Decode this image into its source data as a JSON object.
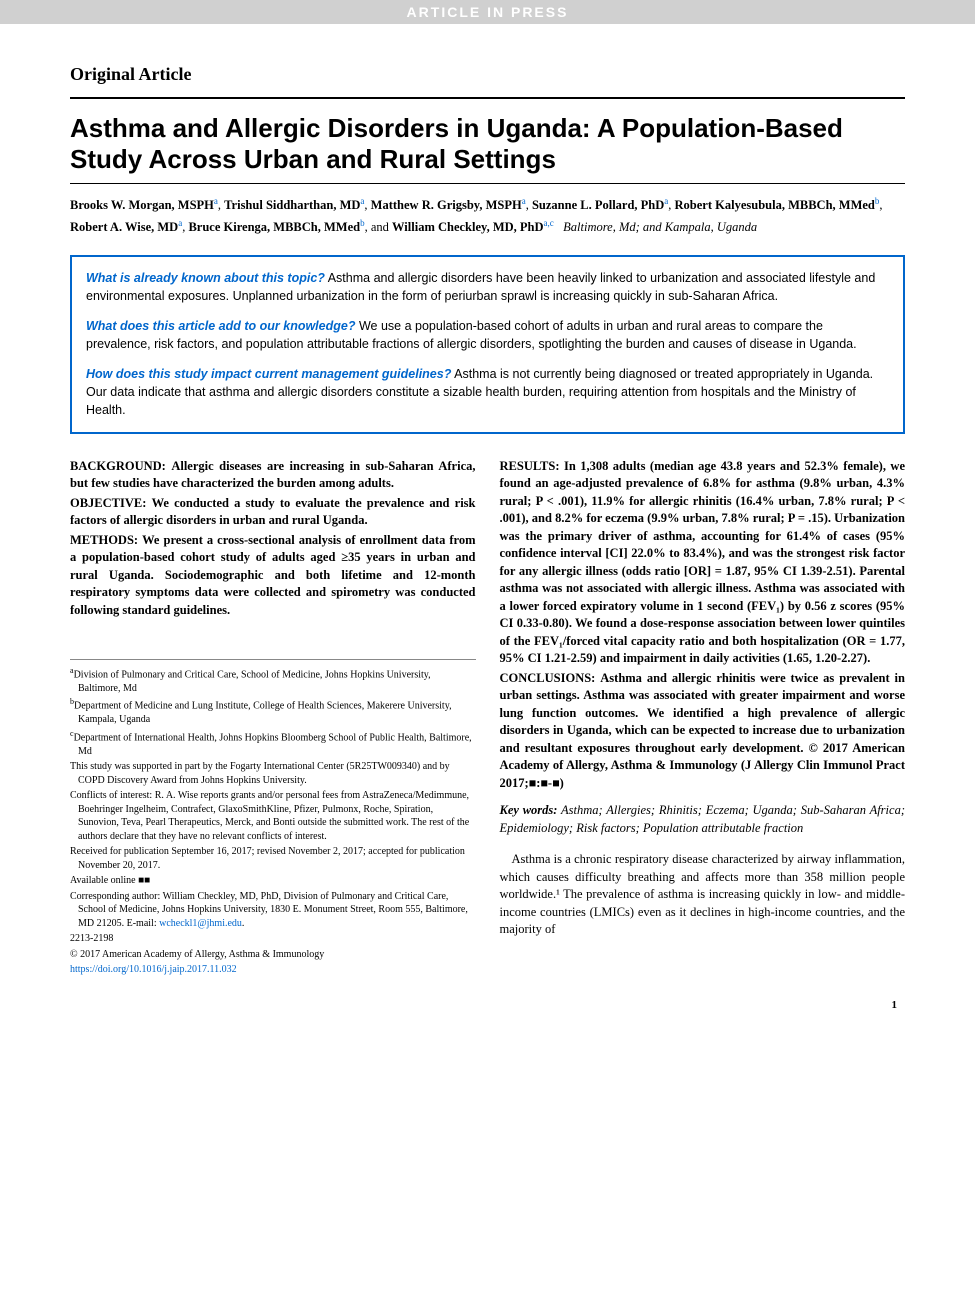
{
  "banner": "ARTICLE IN PRESS",
  "article_type": "Original Article",
  "title": "Asthma and Allergic Disorders in Uganda: A Population-Based Study Across Urban and Rural Settings",
  "authors": [
    {
      "name": "Brooks W. Morgan, MSPH",
      "aff": "a"
    },
    {
      "name": "Trishul Siddharthan, MD",
      "aff": "a"
    },
    {
      "name": "Matthew R. Grigsby, MSPH",
      "aff": "a"
    },
    {
      "name": "Suzanne L. Pollard, PhD",
      "aff": "a"
    },
    {
      "name": "Robert Kalyesubula, MBBCh, MMed",
      "aff": "b"
    },
    {
      "name": "Robert A. Wise, MD",
      "aff": "a"
    },
    {
      "name": "Bruce Kirenga, MBBCh, MMed",
      "aff": "b"
    },
    {
      "name": "William Checkley, MD, PhD",
      "aff": "a,c"
    }
  ],
  "author_locations": "Baltimore, Md; and Kampala, Uganda",
  "highlights": {
    "q1": "What is already known about this topic?",
    "a1": "Asthma and allergic disorders have been heavily linked to urbanization and associated lifestyle and environmental exposures. Unplanned urbanization in the form of periurban sprawl is increasing quickly in sub-Saharan Africa.",
    "q2": "What does this article add to our knowledge?",
    "a2": "We use a population-based cohort of adults in urban and rural areas to compare the prevalence, risk factors, and population attributable fractions of allergic disorders, spotlighting the burden and causes of disease in Uganda.",
    "q3": "How does this study impact current management guidelines?",
    "a3": "Asthma is not currently being diagnosed or treated appropriately in Uganda. Our data indicate that asthma and allergic disorders constitute a sizable health burden, requiring attention from hospitals and the Ministry of Health."
  },
  "abstract": {
    "background_label": "BACKGROUND:",
    "background": "Allergic diseases are increasing in sub-Saharan Africa, but few studies have characterized the burden among adults.",
    "objective_label": "OBJECTIVE:",
    "objective": "We conducted a study to evaluate the prevalence and risk factors of allergic disorders in urban and rural Uganda.",
    "methods_label": "METHODS:",
    "methods": "We present a cross-sectional analysis of enrollment data from a population-based cohort study of adults aged ≥35 years in urban and rural Uganda. Sociodemographic and both lifetime and 12-month respiratory symptoms data were collected and spirometry was conducted following standard guidelines.",
    "results_label": "RESULTS:",
    "results": "In 1,308 adults (median age 43.8 years and 52.3% female), we found an age-adjusted prevalence of 6.8% for asthma (9.8% urban, 4.3% rural; P < .001), 11.9% for allergic rhinitis (16.4% urban, 7.8% rural; P < .001), and 8.2% for eczema (9.9% urban, 7.8% rural; P = .15). Urbanization was the primary driver of asthma, accounting for 61.4% of cases (95% confidence interval [CI] 22.0% to 83.4%), and was the strongest risk factor for any allergic illness (odds ratio [OR] = 1.87, 95% CI 1.39-2.51). Parental asthma was not associated with allergic illness. Asthma was associated with a lower forced expiratory volume in 1 second (FEV₁) by 0.56 z scores (95% CI 0.33-0.80). We found a dose-response association between lower quintiles of the FEV₁/forced vital capacity ratio and both hospitalization (OR = 1.77, 95% CI 1.21-2.59) and impairment in daily activities (1.65, 1.20-2.27).",
    "conclusions_label": "CONCLUSIONS:",
    "conclusions": "Asthma and allergic rhinitis were twice as prevalent in urban settings. Asthma was associated with greater impairment and worse lung function outcomes. We identified a high prevalence of allergic disorders in Uganda, which can be expected to increase due to urbanization and resultant exposures throughout early development.    © 2017 American Academy of Allergy, Asthma & Immunology (J Allergy Clin Immunol Pract 2017;■:■-■)"
  },
  "keywords_label": "Key words:",
  "keywords": "Asthma; Allergies; Rhinitis; Eczema; Uganda; Sub-Saharan Africa; Epidemiology; Risk factors; Population attributable fraction",
  "body_intro": "Asthma is a chronic respiratory disease characterized by airway inflammation, which causes difficulty breathing and affects more than 358 million people worldwide.¹ The prevalence of asthma is increasing quickly in low- and middle-income countries (LMICs) even as it declines in high-income countries, and the majority of",
  "footnotes": {
    "a": "Division of Pulmonary and Critical Care, School of Medicine, Johns Hopkins University, Baltimore, Md",
    "b": "Department of Medicine and Lung Institute, College of Health Sciences, Makerere University, Kampala, Uganda",
    "c": "Department of International Health, Johns Hopkins Bloomberg School of Public Health, Baltimore, Md",
    "funding": "This study was supported in part by the Fogarty International Center (5R25TW009340) and by COPD Discovery Award from Johns Hopkins University.",
    "coi": "Conflicts of interest: R. A. Wise reports grants and/or personal fees from AstraZeneca/Medimmune, Boehringer Ingelheim, Contrafect, GlaxoSmithKline, Pfizer, Pulmonx, Roche, Spiration, Sunovion, Teva, Pearl Therapeutics, Merck, and Bonti outside the submitted work. The rest of the authors declare that they have no relevant conflicts of interest.",
    "received": "Received for publication September 16, 2017; revised November 2, 2017; accepted for publication November 20, 2017.",
    "available": "Available online ■■",
    "corresponding": "Corresponding author: William Checkley, MD, PhD, Division of Pulmonary and Critical Care, School of Medicine, Johns Hopkins University, 1830 E. Monument Street, Room 555, Baltimore, MD 21205. E-mail: ",
    "email": "wcheckl1@jhmi.edu",
    "issn": "2213-2198",
    "copyright": "© 2017 American Academy of Allergy, Asthma & Immunology",
    "doi": "https://doi.org/10.1016/j.jaip.2017.11.032"
  },
  "page_number": "1",
  "colors": {
    "banner_bg": "#d0d0d0",
    "banner_text": "#ffffff",
    "link": "#0066cc",
    "box_border": "#0066cc",
    "text": "#000000"
  },
  "typography": {
    "title_fontsize": 26,
    "body_fontsize": 12.5,
    "footnote_fontsize": 10
  }
}
